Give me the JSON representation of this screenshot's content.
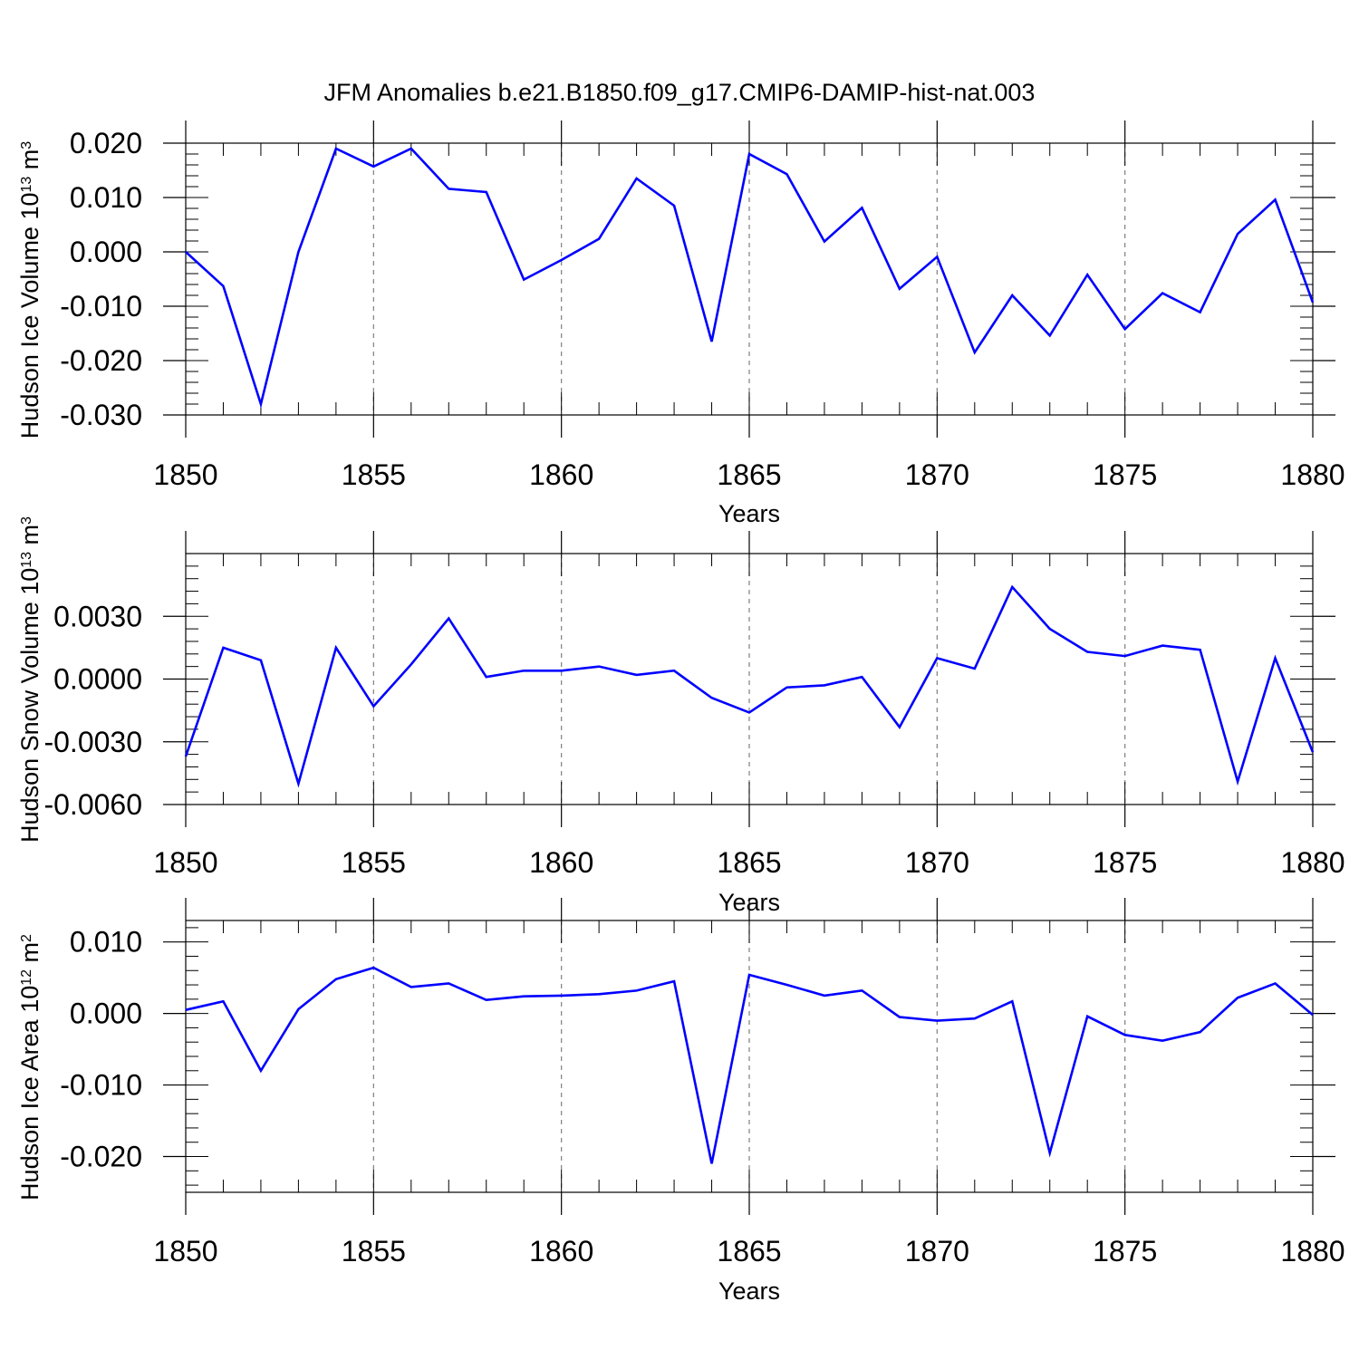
{
  "title": "JFM Anomalies b.e21.B1850.f09_g17.CMIP6-DAMIP-hist-nat.003",
  "colors": {
    "line": "#0000ff",
    "axis": "#000000",
    "grid": "#7f7f7f",
    "background": "#ffffff"
  },
  "chart_data": [
    {
      "type": "line",
      "xlabel": "Years",
      "ylabel": {
        "main": "Hudson Ice Volume 10",
        "sup": "13",
        "unit": " m",
        "unit_sup": "3"
      },
      "xlim": [
        1850,
        1880
      ],
      "ylim": [
        -0.03,
        0.02
      ],
      "x_ticks": [
        "1850",
        "1855",
        "1860",
        "1865",
        "1870",
        "1875",
        "1880"
      ],
      "y_ticks": [
        "0.020",
        "0.010",
        "0.000",
        "-0.010",
        "-0.020",
        "-0.030"
      ],
      "grid": "vertical dashed at major x ticks",
      "series": [
        {
          "x": [
            1850,
            1851,
            1852,
            1853,
            1854,
            1855,
            1856,
            1857,
            1858,
            1859,
            1860,
            1861,
            1862,
            1863,
            1864,
            1865,
            1866,
            1867,
            1868,
            1869,
            1870,
            1871,
            1872,
            1873,
            1874,
            1875,
            1876,
            1877,
            1878,
            1879,
            1880
          ],
          "values": [
            0.0,
            -0.0063,
            -0.028,
            0.0,
            0.019,
            0.0157,
            0.019,
            0.0116,
            0.011,
            -0.0051,
            -0.0015,
            0.0024,
            0.0135,
            0.0085,
            -0.0165,
            0.018,
            0.0143,
            0.0019,
            0.0081,
            -0.0068,
            -0.0009,
            -0.0185,
            -0.008,
            -0.0154,
            -0.0042,
            -0.0142,
            -0.0076,
            -0.0111,
            0.0033,
            0.0096,
            -0.0093
          ]
        }
      ]
    },
    {
      "type": "line",
      "xlabel": "Years",
      "ylabel": {
        "main": "Hudson Snow Volume 10",
        "sup": "13",
        "unit": " m",
        "unit_sup": "3"
      },
      "xlim": [
        1850,
        1880
      ],
      "ylim": [
        -0.006,
        0.006
      ],
      "x_ticks": [
        "1850",
        "1855",
        "1860",
        "1865",
        "1870",
        "1875",
        "1880"
      ],
      "y_ticks": [
        "0.0030",
        "0.0000",
        "-0.0030",
        "-0.0060"
      ],
      "grid": "vertical dashed at major x ticks",
      "series": [
        {
          "x": [
            1850,
            1851,
            1852,
            1853,
            1854,
            1855,
            1856,
            1857,
            1858,
            1859,
            1860,
            1861,
            1862,
            1863,
            1864,
            1865,
            1866,
            1867,
            1868,
            1869,
            1870,
            1871,
            1872,
            1873,
            1874,
            1875,
            1876,
            1877,
            1878,
            1879,
            1880
          ],
          "values": [
            -0.0037,
            0.0015,
            0.0009,
            -0.005,
            0.0015,
            -0.0013,
            0.0007,
            0.0029,
            0.0001,
            0.0004,
            0.0004,
            0.0006,
            0.0002,
            0.0004,
            -0.0009,
            -0.0016,
            -0.0004,
            -0.0003,
            0.0001,
            -0.0023,
            0.001,
            0.0005,
            0.0044,
            0.0024,
            0.0013,
            0.0011,
            0.0016,
            0.0014,
            -0.0049,
            0.001,
            -0.0035
          ]
        }
      ]
    },
    {
      "type": "line",
      "xlabel": "Years",
      "ylabel": {
        "main": "Hudson Ice Area 10",
        "sup": "12",
        "unit": " m",
        "unit_sup": "2"
      },
      "xlim": [
        1850,
        1880
      ],
      "ylim": [
        -0.025,
        0.013
      ],
      "x_ticks": [
        "1850",
        "1855",
        "1860",
        "1865",
        "1870",
        "1875",
        "1880"
      ],
      "y_ticks": [
        "0.010",
        "0.000",
        "-0.010",
        "-0.020"
      ],
      "grid": "vertical dashed at major x ticks",
      "series": [
        {
          "x": [
            1850,
            1851,
            1852,
            1853,
            1854,
            1855,
            1856,
            1857,
            1858,
            1859,
            1860,
            1861,
            1862,
            1863,
            1864,
            1865,
            1866,
            1867,
            1868,
            1869,
            1870,
            1871,
            1872,
            1873,
            1874,
            1875,
            1876,
            1877,
            1878,
            1879,
            1880
          ],
          "values": [
            0.0005,
            0.0017,
            -0.008,
            0.0006,
            0.0048,
            0.0064,
            0.0037,
            0.0042,
            0.0019,
            0.0024,
            0.0025,
            0.0027,
            0.0032,
            0.0045,
            -0.021,
            0.0054,
            0.004,
            0.0025,
            0.0032,
            -0.0005,
            -0.001,
            -0.0007,
            0.0017,
            -0.0195,
            -0.0004,
            -0.003,
            -0.0038,
            -0.0026,
            0.0022,
            0.0042,
            -0.0002
          ]
        }
      ]
    }
  ]
}
